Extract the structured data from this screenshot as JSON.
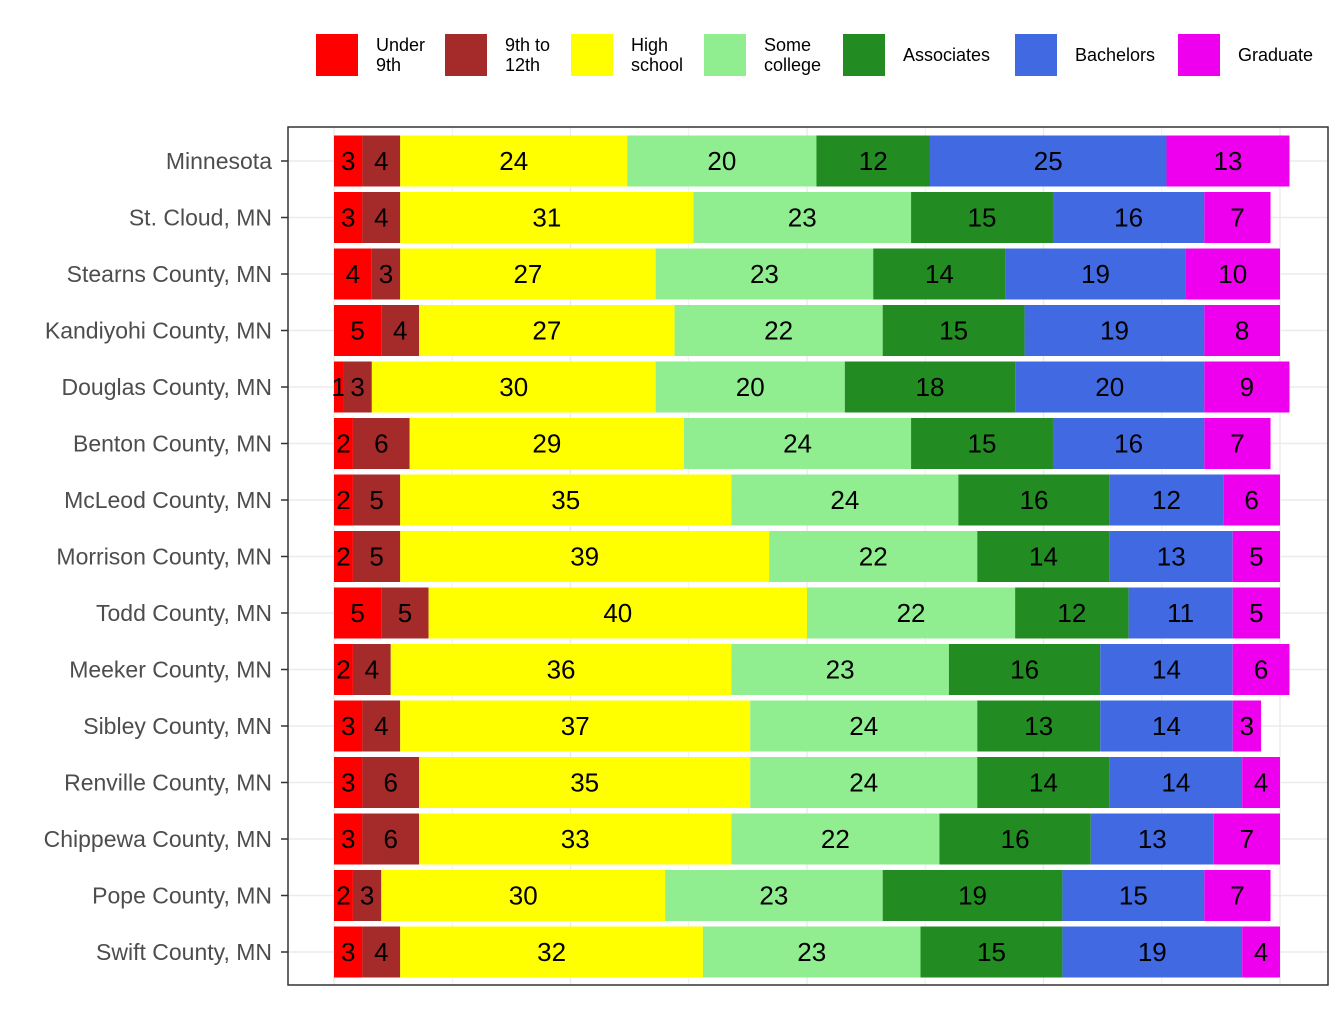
{
  "chart_data": {
    "type": "bar",
    "orientation": "horizontal",
    "stacked": true,
    "title": "",
    "xlabel": "",
    "ylabel": "",
    "xlim": [
      0,
      100
    ],
    "grid": true,
    "legend_position": "top",
    "categories": [
      "Minnesota",
      "St. Cloud, MN",
      "Stearns County, MN",
      "Kandiyohi County, MN",
      "Douglas County, MN",
      "Benton County, MN",
      "McLeod County, MN",
      "Morrison County, MN",
      "Todd County, MN",
      "Meeker County, MN",
      "Sibley County, MN",
      "Renville County, MN",
      "Chippewa County, MN",
      "Pope County, MN",
      "Swift County, MN"
    ],
    "series": [
      {
        "name": "Under 9th",
        "legend_lines": [
          "Under",
          "9th"
        ],
        "color": "#ff0000",
        "values": [
          3,
          3,
          4,
          5,
          1,
          2,
          2,
          2,
          5,
          2,
          3,
          3,
          3,
          2,
          3
        ]
      },
      {
        "name": "9th to 12th",
        "legend_lines": [
          "9th to",
          "12th"
        ],
        "color": "#a52a2a",
        "values": [
          4,
          4,
          3,
          4,
          3,
          6,
          5,
          5,
          5,
          4,
          4,
          6,
          6,
          3,
          4
        ]
      },
      {
        "name": "High school",
        "legend_lines": [
          "High",
          "school"
        ],
        "color": "#ffff00",
        "values": [
          24,
          31,
          27,
          27,
          30,
          29,
          35,
          39,
          40,
          36,
          37,
          35,
          33,
          30,
          32
        ]
      },
      {
        "name": "Some college",
        "legend_lines": [
          "Some",
          "college"
        ],
        "color": "#90ee90",
        "values": [
          20,
          23,
          23,
          22,
          20,
          24,
          24,
          22,
          22,
          23,
          24,
          24,
          22,
          23,
          23
        ]
      },
      {
        "name": "Associates",
        "legend_lines": [
          "Associates"
        ],
        "color": "#228b22",
        "values": [
          12,
          15,
          14,
          15,
          18,
          15,
          16,
          14,
          12,
          16,
          13,
          14,
          16,
          19,
          15
        ]
      },
      {
        "name": "Bachelors",
        "legend_lines": [
          "Bachelors"
        ],
        "color": "#4169e1",
        "values": [
          25,
          16,
          19,
          19,
          20,
          16,
          12,
          13,
          11,
          14,
          14,
          14,
          13,
          15,
          19
        ]
      },
      {
        "name": "Graduate",
        "legend_lines": [
          "Graduate"
        ],
        "color": "#ee00ee",
        "values": [
          13,
          7,
          10,
          8,
          9,
          7,
          6,
          5,
          5,
          6,
          3,
          4,
          7,
          7,
          4
        ]
      }
    ]
  }
}
